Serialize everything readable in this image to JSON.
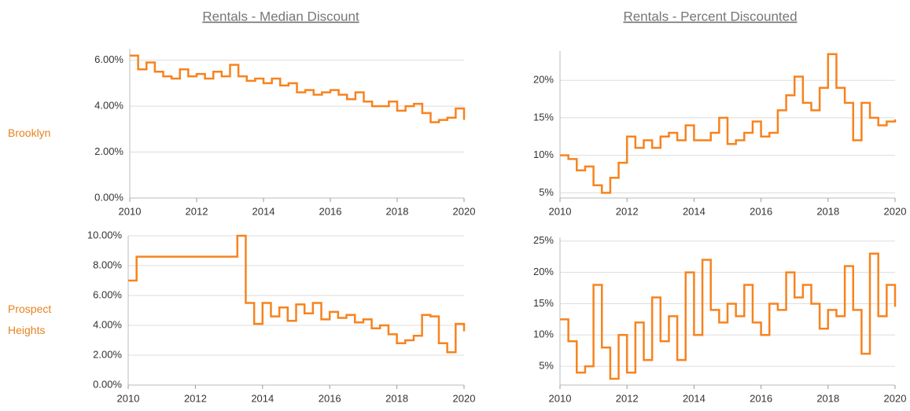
{
  "columns": [
    "Rentals - Median Discount",
    "Rentals - Percent Discounted"
  ],
  "rows": [
    "Brooklyn",
    "Prospect Heights"
  ],
  "chart_data": [
    {
      "type": "line",
      "color": "#f7831e",
      "step": true,
      "grid": true,
      "x": [
        2010,
        2010.25,
        2010.5,
        2010.75,
        2011,
        2011.25,
        2011.5,
        2011.75,
        2012,
        2012.25,
        2012.5,
        2012.75,
        2013,
        2013.25,
        2013.5,
        2013.75,
        2014,
        2014.25,
        2014.5,
        2014.75,
        2015,
        2015.25,
        2015.5,
        2015.75,
        2016,
        2016.25,
        2016.5,
        2016.75,
        2017,
        2017.25,
        2017.5,
        2017.75,
        2018,
        2018.25,
        2018.5,
        2018.75,
        2019,
        2019.25,
        2019.5,
        2019.75,
        2020
      ],
      "values": [
        6.2,
        5.6,
        5.9,
        5.5,
        5.3,
        5.2,
        5.6,
        5.3,
        5.4,
        5.2,
        5.5,
        5.3,
        5.8,
        5.3,
        5.1,
        5.2,
        5.0,
        5.2,
        4.9,
        5.0,
        4.6,
        4.7,
        4.5,
        4.6,
        4.7,
        4.5,
        4.3,
        4.6,
        4.2,
        4.0,
        4.0,
        4.2,
        3.8,
        4.0,
        4.1,
        3.7,
        3.3,
        3.4,
        3.5,
        3.9,
        3.4
      ],
      "xlim": [
        2010,
        2020
      ],
      "xticks": [
        2010,
        2012,
        2014,
        2016,
        2018,
        2020
      ],
      "ylim": [
        0,
        6.5
      ],
      "yticks": [
        {
          "value": 0,
          "label": "0.00%"
        },
        {
          "value": 2,
          "label": "2.00%"
        },
        {
          "value": 4,
          "label": "4.00%"
        },
        {
          "value": 6,
          "label": "6.00%"
        }
      ]
    },
    {
      "type": "line",
      "color": "#f7831e",
      "step": true,
      "grid": true,
      "x": [
        2010,
        2010.25,
        2010.5,
        2010.75,
        2011,
        2011.25,
        2011.5,
        2011.75,
        2012,
        2012.25,
        2012.5,
        2012.75,
        2013,
        2013.25,
        2013.5,
        2013.75,
        2014,
        2014.25,
        2014.5,
        2014.75,
        2015,
        2015.25,
        2015.5,
        2015.75,
        2016,
        2016.25,
        2016.5,
        2016.75,
        2017,
        2017.25,
        2017.5,
        2017.75,
        2018,
        2018.25,
        2018.5,
        2018.75,
        2019,
        2019.25,
        2019.5,
        2019.75,
        2020
      ],
      "values": [
        10,
        9.5,
        8,
        8.5,
        6,
        5,
        7,
        9,
        12.5,
        11,
        12,
        11,
        12.5,
        13,
        12,
        14,
        12,
        12,
        13,
        15,
        11.5,
        12,
        13,
        14.5,
        12.5,
        13,
        16,
        18,
        20.5,
        17,
        16,
        19,
        23.5,
        19,
        17,
        12,
        17,
        15,
        14,
        14.5,
        14.8
      ],
      "xlim": [
        2010,
        2020
      ],
      "xticks": [
        2010,
        2012,
        2014,
        2016,
        2018,
        2020
      ],
      "ylim": [
        4.3,
        23.9
      ],
      "yticks": [
        {
          "value": 5,
          "label": "5%"
        },
        {
          "value": 10,
          "label": "10%"
        },
        {
          "value": 15,
          "label": "15%"
        },
        {
          "value": 20,
          "label": "20%"
        }
      ]
    },
    {
      "type": "line",
      "color": "#f7831e",
      "step": true,
      "grid": true,
      "x": [
        2010,
        2010.25,
        2010.5,
        2010.75,
        2011,
        2011.25,
        2011.5,
        2011.75,
        2012,
        2012.25,
        2012.5,
        2012.75,
        2013,
        2013.25,
        2013.5,
        2013.75,
        2014,
        2014.25,
        2014.5,
        2014.75,
        2015,
        2015.25,
        2015.5,
        2015.75,
        2016,
        2016.25,
        2016.5,
        2016.75,
        2017,
        2017.25,
        2017.5,
        2017.75,
        2018,
        2018.25,
        2018.5,
        2018.75,
        2019,
        2019.25,
        2019.5,
        2019.75,
        2020
      ],
      "values": [
        7,
        8.6,
        8.6,
        8.6,
        8.6,
        8.6,
        8.6,
        8.6,
        8.6,
        8.6,
        8.6,
        8.6,
        8.6,
        10,
        5.5,
        4.1,
        5.5,
        4.6,
        5.2,
        4.3,
        5.4,
        4.8,
        5.5,
        4.4,
        4.9,
        4.5,
        4.7,
        4.2,
        4.4,
        3.8,
        4.0,
        3.4,
        2.8,
        3.0,
        3.3,
        4.7,
        4.6,
        2.8,
        2.2,
        4.1,
        3.6
      ],
      "xlim": [
        2010,
        2020
      ],
      "xticks": [
        2010,
        2012,
        2014,
        2016,
        2018,
        2020
      ],
      "ylim": [
        0,
        10
      ],
      "yticks": [
        {
          "value": 0,
          "label": "0.00%"
        },
        {
          "value": 2,
          "label": "2.00%"
        },
        {
          "value": 4,
          "label": "4.00%"
        },
        {
          "value": 6,
          "label": "6.00%"
        },
        {
          "value": 8,
          "label": "8.00%"
        },
        {
          "value": 10,
          "label": "10.00%"
        }
      ]
    },
    {
      "type": "line",
      "color": "#f7831e",
      "step": true,
      "grid": true,
      "x": [
        2010,
        2010.25,
        2010.5,
        2010.75,
        2011,
        2011.25,
        2011.5,
        2011.75,
        2012,
        2012.25,
        2012.5,
        2012.75,
        2013,
        2013.25,
        2013.5,
        2013.75,
        2014,
        2014.25,
        2014.5,
        2014.75,
        2015,
        2015.25,
        2015.5,
        2015.75,
        2016,
        2016.25,
        2016.5,
        2016.75,
        2017,
        2017.25,
        2017.5,
        2017.75,
        2018,
        2018.25,
        2018.5,
        2018.75,
        2019,
        2019.25,
        2019.5,
        2019.75,
        2020
      ],
      "values": [
        12.5,
        9,
        4,
        5,
        18,
        8,
        3,
        10,
        4,
        12,
        6,
        16,
        9,
        13,
        6,
        20,
        10,
        22,
        14,
        12,
        15,
        13,
        18,
        12,
        10,
        15,
        14,
        20,
        16,
        18,
        15,
        11,
        14,
        13,
        21,
        14,
        7,
        23,
        13,
        18,
        14.5
      ],
      "xlim": [
        2010,
        2020
      ],
      "xticks": [
        2010,
        2012,
        2014,
        2016,
        2018,
        2020
      ],
      "ylim": [
        2,
        25.6
      ],
      "yticks": [
        {
          "value": 5,
          "label": "5%"
        },
        {
          "value": 10,
          "label": "10%"
        },
        {
          "value": 15,
          "label": "15%"
        },
        {
          "value": 20,
          "label": "20%"
        },
        {
          "value": 25,
          "label": "25%"
        }
      ]
    }
  ]
}
